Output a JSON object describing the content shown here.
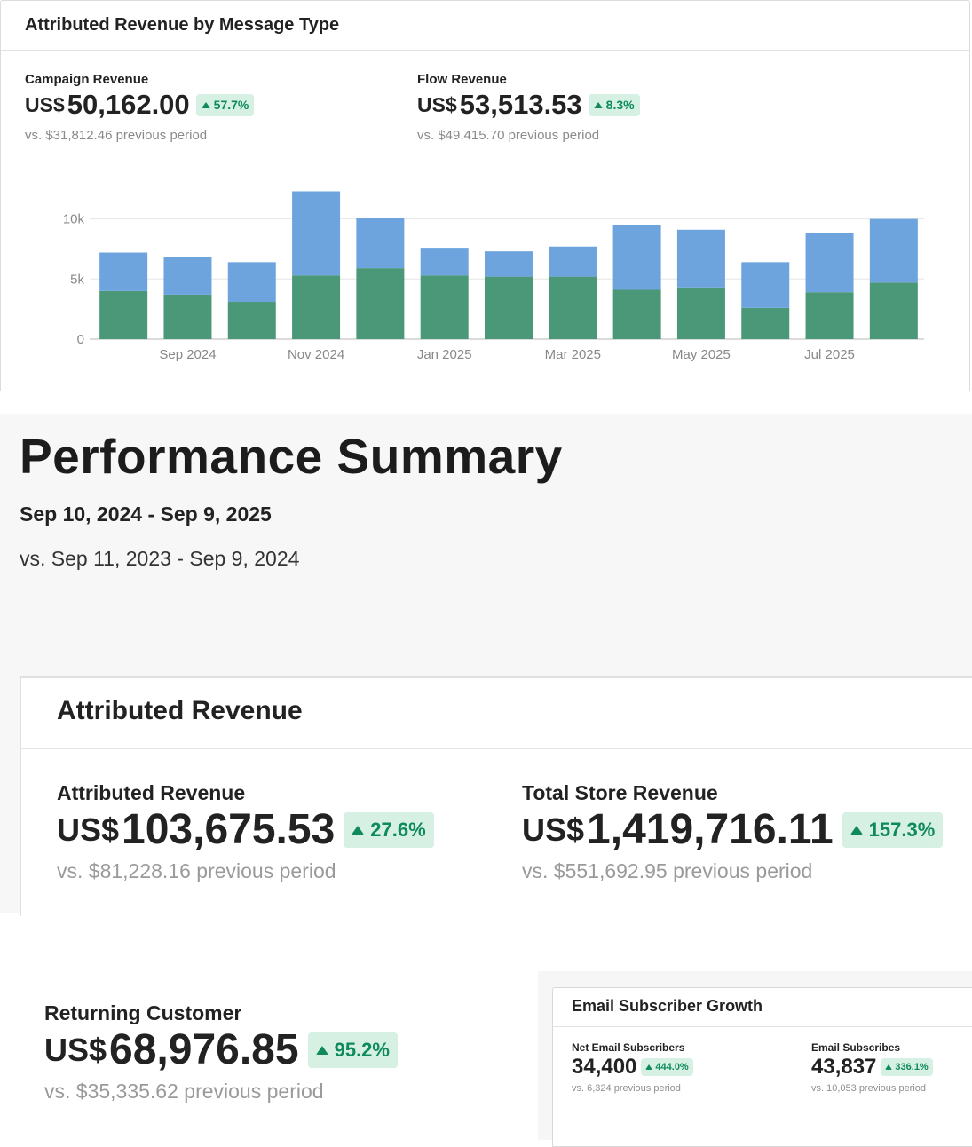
{
  "message_type_card": {
    "title": "Attributed Revenue by Message Type",
    "campaign": {
      "label": "Campaign Revenue",
      "currency": "US$",
      "value": "50,162.00",
      "change": "57.7%",
      "previous": "vs. $31,812.46 previous period"
    },
    "flow": {
      "label": "Flow Revenue",
      "currency": "US$",
      "value": "53,513.53",
      "change": "8.3%",
      "previous": "vs. $49,415.70 previous period"
    }
  },
  "chart_data": {
    "type": "bar",
    "stacked": true,
    "y_ticks": [
      "0",
      "5k",
      "10k"
    ],
    "ylim": [
      0,
      13000
    ],
    "x_tick_labels": [
      "Sep 2024",
      "Nov 2024",
      "Jan 2025",
      "Mar 2025",
      "May 2025",
      "Jul 2025"
    ],
    "series_colors": [
      "#4a9877",
      "#6ea4de"
    ],
    "series": [
      {
        "values": [
          4000,
          3700,
          3100,
          5300,
          5900,
          5300,
          5200,
          5200,
          4100,
          4300,
          2600,
          3900,
          4700
        ]
      },
      {
        "values": [
          3200,
          3100,
          3300,
          7000,
          4200,
          2300,
          2100,
          2500,
          5400,
          4800,
          3800,
          4900,
          5300
        ]
      }
    ],
    "grid": true
  },
  "performance_summary": {
    "title": "Performance Summary",
    "date_range": "Sep 10, 2024 - Sep 9, 2025",
    "compare_range": "vs. Sep 11, 2023 - Sep 9, 2024"
  },
  "attributed_card": {
    "title": "Attributed Revenue",
    "attributed": {
      "label": "Attributed Revenue",
      "currency": "US$",
      "value": "103,675.53",
      "change": "27.6%",
      "previous": "vs. $81,228.16 previous period"
    },
    "store": {
      "label": "Total Store Revenue",
      "currency": "US$",
      "value": "1,419,716.11",
      "change": "157.3%",
      "previous": "vs. $551,692.95 previous period"
    }
  },
  "returning": {
    "label": "Returning Customer",
    "currency": "US$",
    "value": "68,976.85",
    "change": "95.2%",
    "previous": "vs. $35,335.62 previous period"
  },
  "email_card": {
    "title": "Email Subscriber Growth",
    "net": {
      "label": "Net Email Subscribers",
      "value": "34,400",
      "change": "444.0%",
      "previous": "vs. 6,324 previous period"
    },
    "subscribes": {
      "label": "Email Subscribes",
      "value": "43,837",
      "change": "336.1%",
      "previous": "vs. 10,053 previous period"
    }
  },
  "colors": {
    "badge_bg": "#d6f0e4",
    "badge_text": "#108a5c"
  }
}
